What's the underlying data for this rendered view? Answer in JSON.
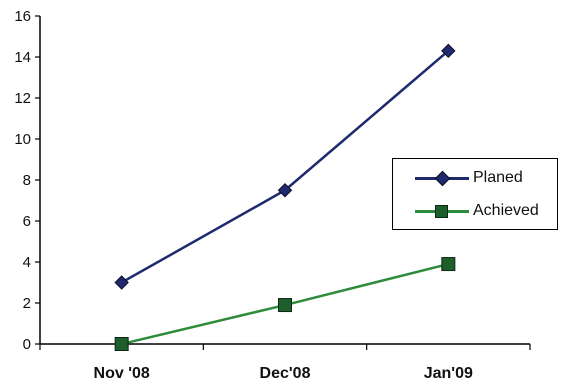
{
  "chart_data": {
    "type": "line",
    "title": "",
    "xlabel": "",
    "ylabel": "",
    "categories": [
      "Nov '08",
      "Dec'08",
      "Jan'09"
    ],
    "ylim": [
      0,
      16
    ],
    "yticks": [
      "0",
      "2",
      "4",
      "6",
      "8",
      "10",
      "12",
      "14",
      "16"
    ],
    "grid": false,
    "legend_position": "right",
    "series": [
      {
        "name": "Planed",
        "values": [
          3,
          7.5,
          14.3
        ],
        "color": "#1f2a6e",
        "marker": "diamond"
      },
      {
        "name": "Achieved",
        "values": [
          0,
          1.9,
          3.9
        ],
        "color": "#2e8b3a",
        "marker_color": "#1d5e2a",
        "marker": "square"
      }
    ]
  }
}
